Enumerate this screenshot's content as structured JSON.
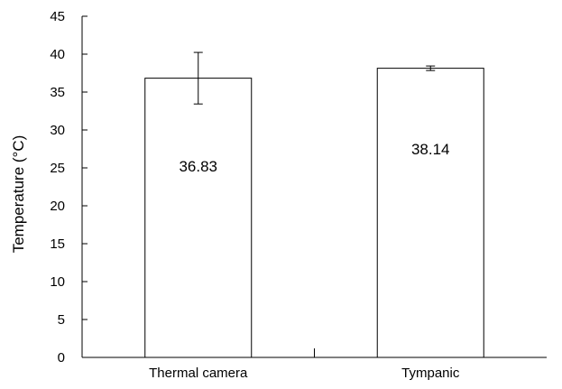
{
  "chart_data": {
    "type": "bar",
    "categories": [
      "Thermal camera",
      "Tympanic"
    ],
    "values": [
      36.83,
      38.14
    ],
    "error": [
      3.4,
      0.3
    ],
    "data_labels": [
      "36.83",
      "38.14"
    ],
    "xlabel": "",
    "ylabel": "Temperature (°C)",
    "ylim": [
      0,
      45
    ],
    "yticks": [
      0,
      5,
      10,
      15,
      20,
      25,
      30,
      35,
      40,
      45
    ],
    "grid": false,
    "colors": {
      "bar_fill": "#ffffff",
      "bar_stroke": "#000000",
      "axis": "#000000"
    }
  }
}
